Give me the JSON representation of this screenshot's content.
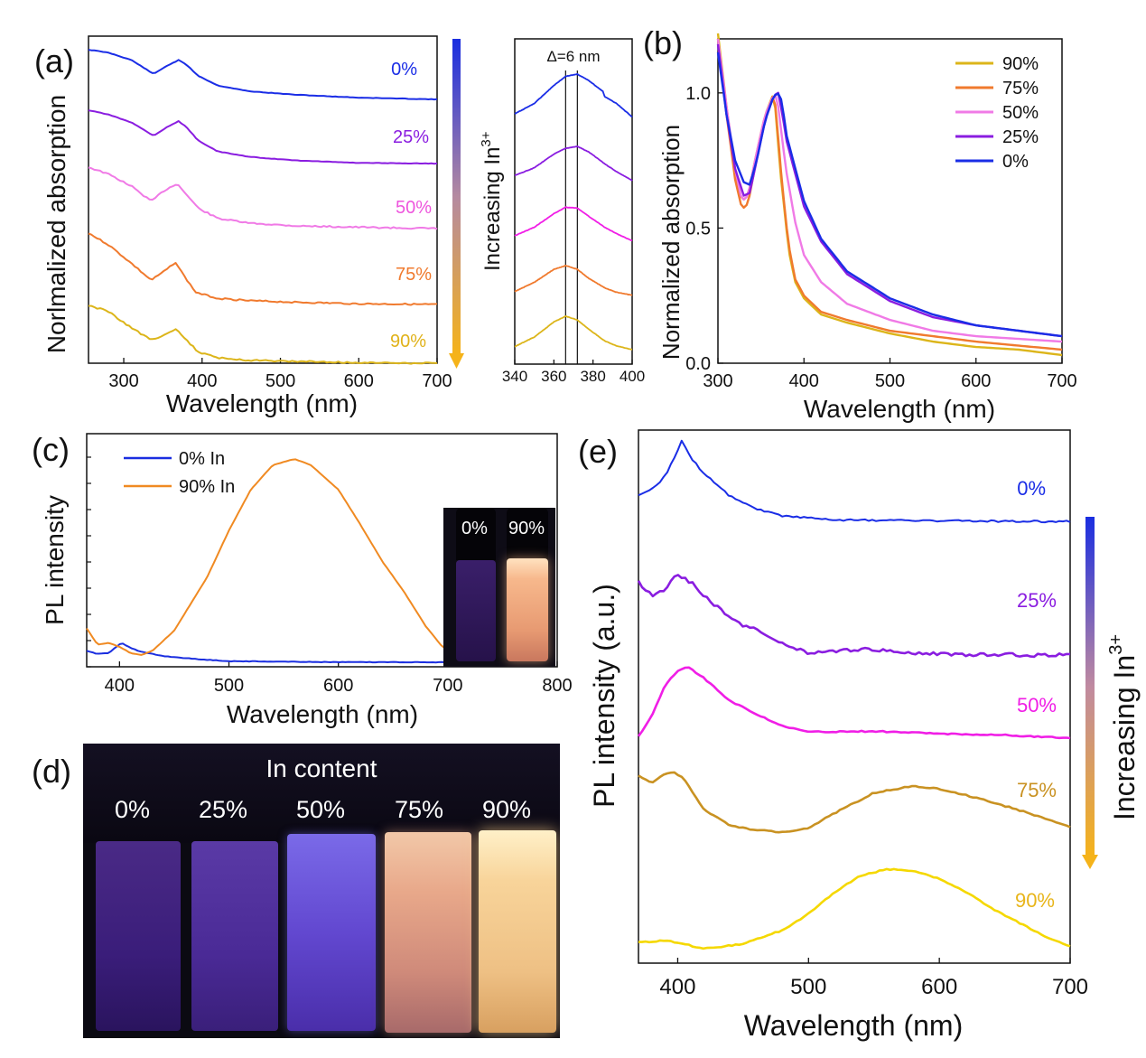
{
  "panels": {
    "a": {
      "label": "(a)",
      "ylabel": "Norlmalized absorption",
      "xlabel": "Wavelength (nm)",
      "xticks": [
        "300",
        "400",
        "500",
        "600",
        "700"
      ],
      "xlim": [
        255,
        700
      ],
      "gradient_label": "Increasing In",
      "gradient_sup": "3+"
    },
    "a_inset": {
      "annotation": "Δ=6 nm",
      "xticks": [
        "340",
        "360",
        "380",
        "400"
      ],
      "xlim": [
        340,
        400
      ],
      "vlines": [
        366,
        372
      ]
    },
    "b": {
      "label": "(b)",
      "ylabel": "Normalized absorption",
      "xlabel": "Wavelength (nm)",
      "xticks": [
        "300",
        "400",
        "500",
        "600",
        "700"
      ],
      "yticks": [
        "0.0",
        "0.5",
        "1.0"
      ],
      "xlim": [
        300,
        700
      ],
      "ylim": [
        0,
        1.2
      ]
    },
    "c": {
      "label": "(c)",
      "ylabel": "PL intensity",
      "xlabel": "Wavelength (nm)",
      "xticks": [
        "400",
        "500",
        "600",
        "700",
        "800"
      ],
      "xlim": [
        370,
        800
      ],
      "legend": [
        "0% In",
        "90% In"
      ],
      "inset_photo_labels": [
        "0%",
        "90%"
      ]
    },
    "d": {
      "label": "(d)",
      "title": "In content",
      "labels": [
        "0%",
        "25%",
        "50%",
        "75%",
        "90%"
      ]
    },
    "e": {
      "label": "(e)",
      "ylabel": "PL intensity (a.u.)",
      "xlabel": "Wavelength (nm)",
      "xticks": [
        "400",
        "500",
        "600",
        "700"
      ],
      "xlim": [
        370,
        700
      ],
      "gradient_label": "Increasing In",
      "gradient_sup": "3+"
    }
  },
  "colors": {
    "s0": "#1a2de6",
    "s25": "#8a1de0",
    "s50": "#f07ae6",
    "s50e": "#f01ee6",
    "s75": "#f07a2e",
    "s75e": "#c99222",
    "s90": "#dcb51a",
    "s90e": "#f5d800",
    "c0": "#1a2ee0",
    "c90": "#f08a22"
  },
  "chart_data": [
    {
      "panel": "a",
      "type": "line",
      "title": "",
      "xlabel": "Wavelength (nm)",
      "ylabel": "Norlmalized absorption",
      "series": [
        {
          "name": "0%",
          "x": [
            255,
            280,
            310,
            338,
            355,
            370,
            380,
            395,
            420,
            460,
            520,
            600,
            700
          ],
          "y": [
            1.0,
            0.95,
            0.82,
            0.58,
            0.72,
            0.82,
            0.74,
            0.55,
            0.38,
            0.28,
            0.22,
            0.17,
            0.14
          ]
        },
        {
          "name": "25%",
          "x": [
            255,
            280,
            310,
            338,
            355,
            370,
            380,
            395,
            420,
            460,
            520,
            600,
            700
          ],
          "y": [
            1.0,
            0.93,
            0.8,
            0.58,
            0.72,
            0.82,
            0.72,
            0.5,
            0.32,
            0.23,
            0.17,
            0.13,
            0.12
          ]
        },
        {
          "name": "50%",
          "x": [
            255,
            280,
            310,
            335,
            352,
            368,
            380,
            395,
            420,
            460,
            520,
            600,
            700
          ],
          "y": [
            1.0,
            0.9,
            0.72,
            0.5,
            0.66,
            0.76,
            0.6,
            0.4,
            0.25,
            0.18,
            0.14,
            0.12,
            0.1
          ]
        },
        {
          "name": "75%",
          "x": [
            255,
            280,
            310,
            335,
            352,
            366,
            378,
            392,
            420,
            460,
            520,
            600,
            700
          ],
          "y": [
            1.0,
            0.85,
            0.6,
            0.38,
            0.5,
            0.62,
            0.42,
            0.22,
            0.14,
            0.11,
            0.09,
            0.07,
            0.06
          ]
        },
        {
          "name": "90%",
          "x": [
            255,
            280,
            310,
            335,
            352,
            368,
            380,
            395,
            420,
            460,
            520,
            600,
            700
          ],
          "y": [
            1.0,
            0.9,
            0.62,
            0.42,
            0.5,
            0.6,
            0.42,
            0.22,
            0.12,
            0.08,
            0.06,
            0.04,
            0.03
          ]
        }
      ],
      "labels": [
        "0%",
        "25%",
        "50%",
        "75%",
        "90%"
      ]
    },
    {
      "panel": "a_inset",
      "type": "line",
      "xlabel": "",
      "xlim": [
        340,
        400
      ],
      "series": [
        {
          "name": "0%",
          "x": [
            340,
            350,
            360,
            366,
            372,
            378,
            385,
            386,
            392,
            400
          ],
          "y": [
            0.12,
            0.35,
            0.75,
            0.95,
            1.0,
            0.85,
            0.62,
            0.5,
            0.35,
            0.05
          ]
        },
        {
          "name": "25%",
          "x": [
            340,
            350,
            360,
            366,
            372,
            378,
            386,
            392,
            400
          ],
          "y": [
            0.25,
            0.45,
            0.8,
            0.95,
            1.0,
            0.85,
            0.55,
            0.35,
            0.12
          ]
        },
        {
          "name": "50%",
          "x": [
            340,
            350,
            360,
            366,
            372,
            378,
            386,
            392,
            400
          ],
          "y": [
            0.3,
            0.5,
            0.82,
            0.97,
            0.95,
            0.75,
            0.5,
            0.35,
            0.18
          ]
        },
        {
          "name": "75%",
          "x": [
            340,
            350,
            360,
            366,
            372,
            378,
            386,
            392,
            400
          ],
          "y": [
            0.3,
            0.55,
            0.9,
            1.0,
            0.9,
            0.65,
            0.4,
            0.28,
            0.2
          ]
        },
        {
          "name": "90%",
          "x": [
            340,
            350,
            360,
            366,
            372,
            378,
            386,
            392,
            400
          ],
          "y": [
            0.2,
            0.45,
            0.85,
            1.0,
            0.9,
            0.65,
            0.35,
            0.22,
            0.12
          ]
        }
      ]
    },
    {
      "panel": "b",
      "type": "line",
      "xlabel": "Wavelength (nm)",
      "ylabel": "Normalized absorption",
      "xlim": [
        300,
        700
      ],
      "ylim": [
        0,
        1.2
      ],
      "series": [
        {
          "name": "90%",
          "x": [
            300,
            310,
            320,
            328,
            335,
            345,
            355,
            365,
            368,
            372,
            378,
            382,
            390,
            400,
            420,
            450,
            500,
            550,
            600,
            650,
            700
          ],
          "y": [
            1.22,
            0.95,
            0.7,
            0.6,
            0.62,
            0.78,
            0.92,
            1.0,
            0.9,
            0.72,
            0.55,
            0.42,
            0.3,
            0.24,
            0.18,
            0.15,
            0.11,
            0.08,
            0.06,
            0.05,
            0.03
          ]
        },
        {
          "name": "75%",
          "x": [
            300,
            310,
            320,
            328,
            335,
            345,
            355,
            365,
            368,
            372,
            378,
            382,
            390,
            400,
            420,
            450,
            500,
            550,
            600,
            650,
            700
          ],
          "y": [
            1.2,
            0.92,
            0.68,
            0.57,
            0.59,
            0.76,
            0.91,
            1.0,
            0.92,
            0.75,
            0.56,
            0.44,
            0.31,
            0.25,
            0.19,
            0.16,
            0.12,
            0.1,
            0.08,
            0.065,
            0.05
          ]
        },
        {
          "name": "50%",
          "x": [
            300,
            310,
            320,
            328,
            335,
            345,
            355,
            366,
            370,
            375,
            380,
            390,
            400,
            420,
            450,
            500,
            550,
            600,
            650,
            700
          ],
          "y": [
            1.2,
            0.95,
            0.72,
            0.6,
            0.62,
            0.78,
            0.92,
            1.0,
            0.95,
            0.82,
            0.7,
            0.52,
            0.4,
            0.3,
            0.22,
            0.16,
            0.12,
            0.1,
            0.09,
            0.08
          ]
        },
        {
          "name": "25%",
          "x": [
            300,
            310,
            320,
            330,
            337,
            345,
            355,
            365,
            370,
            375,
            380,
            390,
            400,
            420,
            450,
            500,
            550,
            600,
            650,
            700
          ],
          "y": [
            1.18,
            0.92,
            0.72,
            0.62,
            0.63,
            0.75,
            0.9,
            0.99,
            1.0,
            0.92,
            0.82,
            0.7,
            0.58,
            0.45,
            0.33,
            0.23,
            0.17,
            0.14,
            0.12,
            0.1
          ]
        },
        {
          "name": "0%",
          "x": [
            300,
            310,
            320,
            330,
            337,
            345,
            355,
            365,
            372,
            376,
            380,
            390,
            400,
            420,
            450,
            500,
            550,
            600,
            650,
            700
          ],
          "y": [
            1.15,
            0.92,
            0.75,
            0.67,
            0.66,
            0.75,
            0.9,
            0.99,
            1.0,
            0.93,
            0.84,
            0.72,
            0.6,
            0.46,
            0.34,
            0.24,
            0.18,
            0.14,
            0.12,
            0.1
          ]
        }
      ]
    },
    {
      "panel": "c",
      "type": "line",
      "xlabel": "Wavelength (nm)",
      "ylabel": "PL intensity",
      "xlim": [
        370,
        800
      ],
      "series": [
        {
          "name": "0% In",
          "x": [
            370,
            380,
            390,
            398,
            402,
            410,
            420,
            440,
            470,
            500,
            600,
            700
          ],
          "y": [
            0.06,
            0.045,
            0.05,
            0.085,
            0.1,
            0.075,
            0.055,
            0.035,
            0.02,
            0.01,
            0.005,
            0.005
          ]
        },
        {
          "name": "90% In",
          "x": [
            370,
            380,
            390,
            400,
            410,
            420,
            430,
            450,
            480,
            500,
            520,
            540,
            560,
            575,
            600,
            620,
            640,
            660,
            680,
            695,
            702
          ],
          "y": [
            0.17,
            0.09,
            0.1,
            0.08,
            0.05,
            0.04,
            0.06,
            0.16,
            0.42,
            0.65,
            0.85,
            0.97,
            1.0,
            0.97,
            0.85,
            0.68,
            0.5,
            0.35,
            0.18,
            0.08,
            0.06
          ]
        }
      ]
    },
    {
      "panel": "e",
      "type": "line",
      "xlabel": "Wavelength (nm)",
      "ylabel": "PL intensity (a.u.)",
      "xlim": [
        370,
        700
      ],
      "series": [
        {
          "name": "0%",
          "x": [
            370,
            380,
            390,
            398,
            403,
            410,
            420,
            440,
            460,
            480,
            520,
            600,
            700
          ],
          "y": [
            0.35,
            0.42,
            0.58,
            0.82,
            1.0,
            0.8,
            0.62,
            0.35,
            0.2,
            0.12,
            0.07,
            0.06,
            0.05
          ]
        },
        {
          "name": "25%",
          "x": [
            370,
            380,
            390,
            400,
            410,
            420,
            440,
            450,
            460,
            480,
            500,
            550,
            600,
            700
          ],
          "y": [
            0.9,
            0.75,
            0.82,
            1.0,
            0.9,
            0.75,
            0.48,
            0.4,
            0.35,
            0.18,
            0.08,
            0.12,
            0.06,
            0.05
          ]
        },
        {
          "name": "50%",
          "x": [
            370,
            380,
            390,
            400,
            408,
            420,
            440,
            460,
            480,
            500,
            550,
            600,
            650,
            700
          ],
          "y": [
            0.08,
            0.35,
            0.75,
            0.95,
            1.0,
            0.85,
            0.55,
            0.38,
            0.22,
            0.14,
            0.15,
            0.12,
            0.1,
            0.06
          ]
        },
        {
          "name": "75%",
          "x": [
            370,
            380,
            390,
            398,
            405,
            420,
            440,
            460,
            480,
            500,
            520,
            550,
            580,
            600,
            630,
            660,
            700
          ],
          "y": [
            0.95,
            0.85,
            0.98,
            1.0,
            0.9,
            0.45,
            0.22,
            0.15,
            0.12,
            0.18,
            0.4,
            0.7,
            0.8,
            0.76,
            0.62,
            0.45,
            0.2
          ]
        },
        {
          "name": "90%",
          "x": [
            370,
            390,
            400,
            420,
            450,
            480,
            500,
            520,
            540,
            560,
            580,
            600,
            620,
            640,
            660,
            680,
            700
          ],
          "y": [
            0.1,
            0.12,
            0.1,
            0.02,
            0.08,
            0.25,
            0.45,
            0.72,
            0.92,
            1.0,
            0.98,
            0.88,
            0.72,
            0.52,
            0.35,
            0.18,
            0.05
          ]
        }
      ],
      "labels": [
        "0%",
        "25%",
        "50%",
        "75%",
        "90%"
      ]
    }
  ]
}
